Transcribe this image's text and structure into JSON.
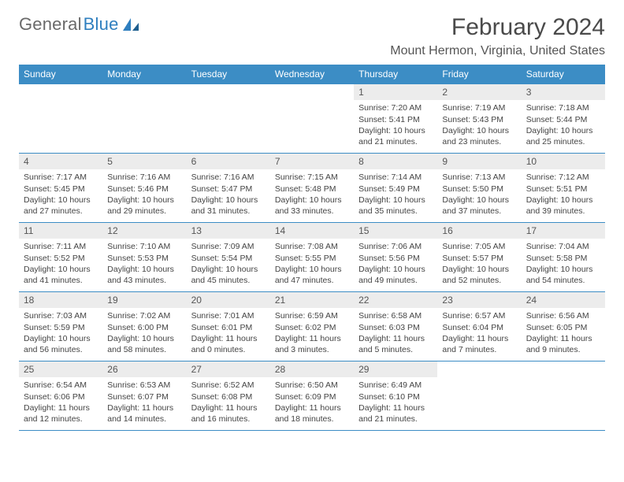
{
  "brand": {
    "part1": "General",
    "part2": "Blue"
  },
  "title": "February 2024",
  "location": "Mount Hermon, Virginia, United States",
  "colors": {
    "header_bar": "#3c8dc5",
    "header_text": "#ffffff",
    "daynum_bg": "#ececec",
    "border": "#3c8dc5",
    "page_bg": "#ffffff",
    "body_text": "#444444",
    "title_text": "#4a4a4a"
  },
  "weekdays": [
    "Sunday",
    "Monday",
    "Tuesday",
    "Wednesday",
    "Thursday",
    "Friday",
    "Saturday"
  ],
  "grid": [
    [
      null,
      null,
      null,
      null,
      {
        "n": "1",
        "sr": "Sunrise: 7:20 AM",
        "ss": "Sunset: 5:41 PM",
        "dl": "Daylight: 10 hours and 21 minutes."
      },
      {
        "n": "2",
        "sr": "Sunrise: 7:19 AM",
        "ss": "Sunset: 5:43 PM",
        "dl": "Daylight: 10 hours and 23 minutes."
      },
      {
        "n": "3",
        "sr": "Sunrise: 7:18 AM",
        "ss": "Sunset: 5:44 PM",
        "dl": "Daylight: 10 hours and 25 minutes."
      }
    ],
    [
      {
        "n": "4",
        "sr": "Sunrise: 7:17 AM",
        "ss": "Sunset: 5:45 PM",
        "dl": "Daylight: 10 hours and 27 minutes."
      },
      {
        "n": "5",
        "sr": "Sunrise: 7:16 AM",
        "ss": "Sunset: 5:46 PM",
        "dl": "Daylight: 10 hours and 29 minutes."
      },
      {
        "n": "6",
        "sr": "Sunrise: 7:16 AM",
        "ss": "Sunset: 5:47 PM",
        "dl": "Daylight: 10 hours and 31 minutes."
      },
      {
        "n": "7",
        "sr": "Sunrise: 7:15 AM",
        "ss": "Sunset: 5:48 PM",
        "dl": "Daylight: 10 hours and 33 minutes."
      },
      {
        "n": "8",
        "sr": "Sunrise: 7:14 AM",
        "ss": "Sunset: 5:49 PM",
        "dl": "Daylight: 10 hours and 35 minutes."
      },
      {
        "n": "9",
        "sr": "Sunrise: 7:13 AM",
        "ss": "Sunset: 5:50 PM",
        "dl": "Daylight: 10 hours and 37 minutes."
      },
      {
        "n": "10",
        "sr": "Sunrise: 7:12 AM",
        "ss": "Sunset: 5:51 PM",
        "dl": "Daylight: 10 hours and 39 minutes."
      }
    ],
    [
      {
        "n": "11",
        "sr": "Sunrise: 7:11 AM",
        "ss": "Sunset: 5:52 PM",
        "dl": "Daylight: 10 hours and 41 minutes."
      },
      {
        "n": "12",
        "sr": "Sunrise: 7:10 AM",
        "ss": "Sunset: 5:53 PM",
        "dl": "Daylight: 10 hours and 43 minutes."
      },
      {
        "n": "13",
        "sr": "Sunrise: 7:09 AM",
        "ss": "Sunset: 5:54 PM",
        "dl": "Daylight: 10 hours and 45 minutes."
      },
      {
        "n": "14",
        "sr": "Sunrise: 7:08 AM",
        "ss": "Sunset: 5:55 PM",
        "dl": "Daylight: 10 hours and 47 minutes."
      },
      {
        "n": "15",
        "sr": "Sunrise: 7:06 AM",
        "ss": "Sunset: 5:56 PM",
        "dl": "Daylight: 10 hours and 49 minutes."
      },
      {
        "n": "16",
        "sr": "Sunrise: 7:05 AM",
        "ss": "Sunset: 5:57 PM",
        "dl": "Daylight: 10 hours and 52 minutes."
      },
      {
        "n": "17",
        "sr": "Sunrise: 7:04 AM",
        "ss": "Sunset: 5:58 PM",
        "dl": "Daylight: 10 hours and 54 minutes."
      }
    ],
    [
      {
        "n": "18",
        "sr": "Sunrise: 7:03 AM",
        "ss": "Sunset: 5:59 PM",
        "dl": "Daylight: 10 hours and 56 minutes."
      },
      {
        "n": "19",
        "sr": "Sunrise: 7:02 AM",
        "ss": "Sunset: 6:00 PM",
        "dl": "Daylight: 10 hours and 58 minutes."
      },
      {
        "n": "20",
        "sr": "Sunrise: 7:01 AM",
        "ss": "Sunset: 6:01 PM",
        "dl": "Daylight: 11 hours and 0 minutes."
      },
      {
        "n": "21",
        "sr": "Sunrise: 6:59 AM",
        "ss": "Sunset: 6:02 PM",
        "dl": "Daylight: 11 hours and 3 minutes."
      },
      {
        "n": "22",
        "sr": "Sunrise: 6:58 AM",
        "ss": "Sunset: 6:03 PM",
        "dl": "Daylight: 11 hours and 5 minutes."
      },
      {
        "n": "23",
        "sr": "Sunrise: 6:57 AM",
        "ss": "Sunset: 6:04 PM",
        "dl": "Daylight: 11 hours and 7 minutes."
      },
      {
        "n": "24",
        "sr": "Sunrise: 6:56 AM",
        "ss": "Sunset: 6:05 PM",
        "dl": "Daylight: 11 hours and 9 minutes."
      }
    ],
    [
      {
        "n": "25",
        "sr": "Sunrise: 6:54 AM",
        "ss": "Sunset: 6:06 PM",
        "dl": "Daylight: 11 hours and 12 minutes."
      },
      {
        "n": "26",
        "sr": "Sunrise: 6:53 AM",
        "ss": "Sunset: 6:07 PM",
        "dl": "Daylight: 11 hours and 14 minutes."
      },
      {
        "n": "27",
        "sr": "Sunrise: 6:52 AM",
        "ss": "Sunset: 6:08 PM",
        "dl": "Daylight: 11 hours and 16 minutes."
      },
      {
        "n": "28",
        "sr": "Sunrise: 6:50 AM",
        "ss": "Sunset: 6:09 PM",
        "dl": "Daylight: 11 hours and 18 minutes."
      },
      {
        "n": "29",
        "sr": "Sunrise: 6:49 AM",
        "ss": "Sunset: 6:10 PM",
        "dl": "Daylight: 11 hours and 21 minutes."
      },
      null,
      null
    ]
  ]
}
